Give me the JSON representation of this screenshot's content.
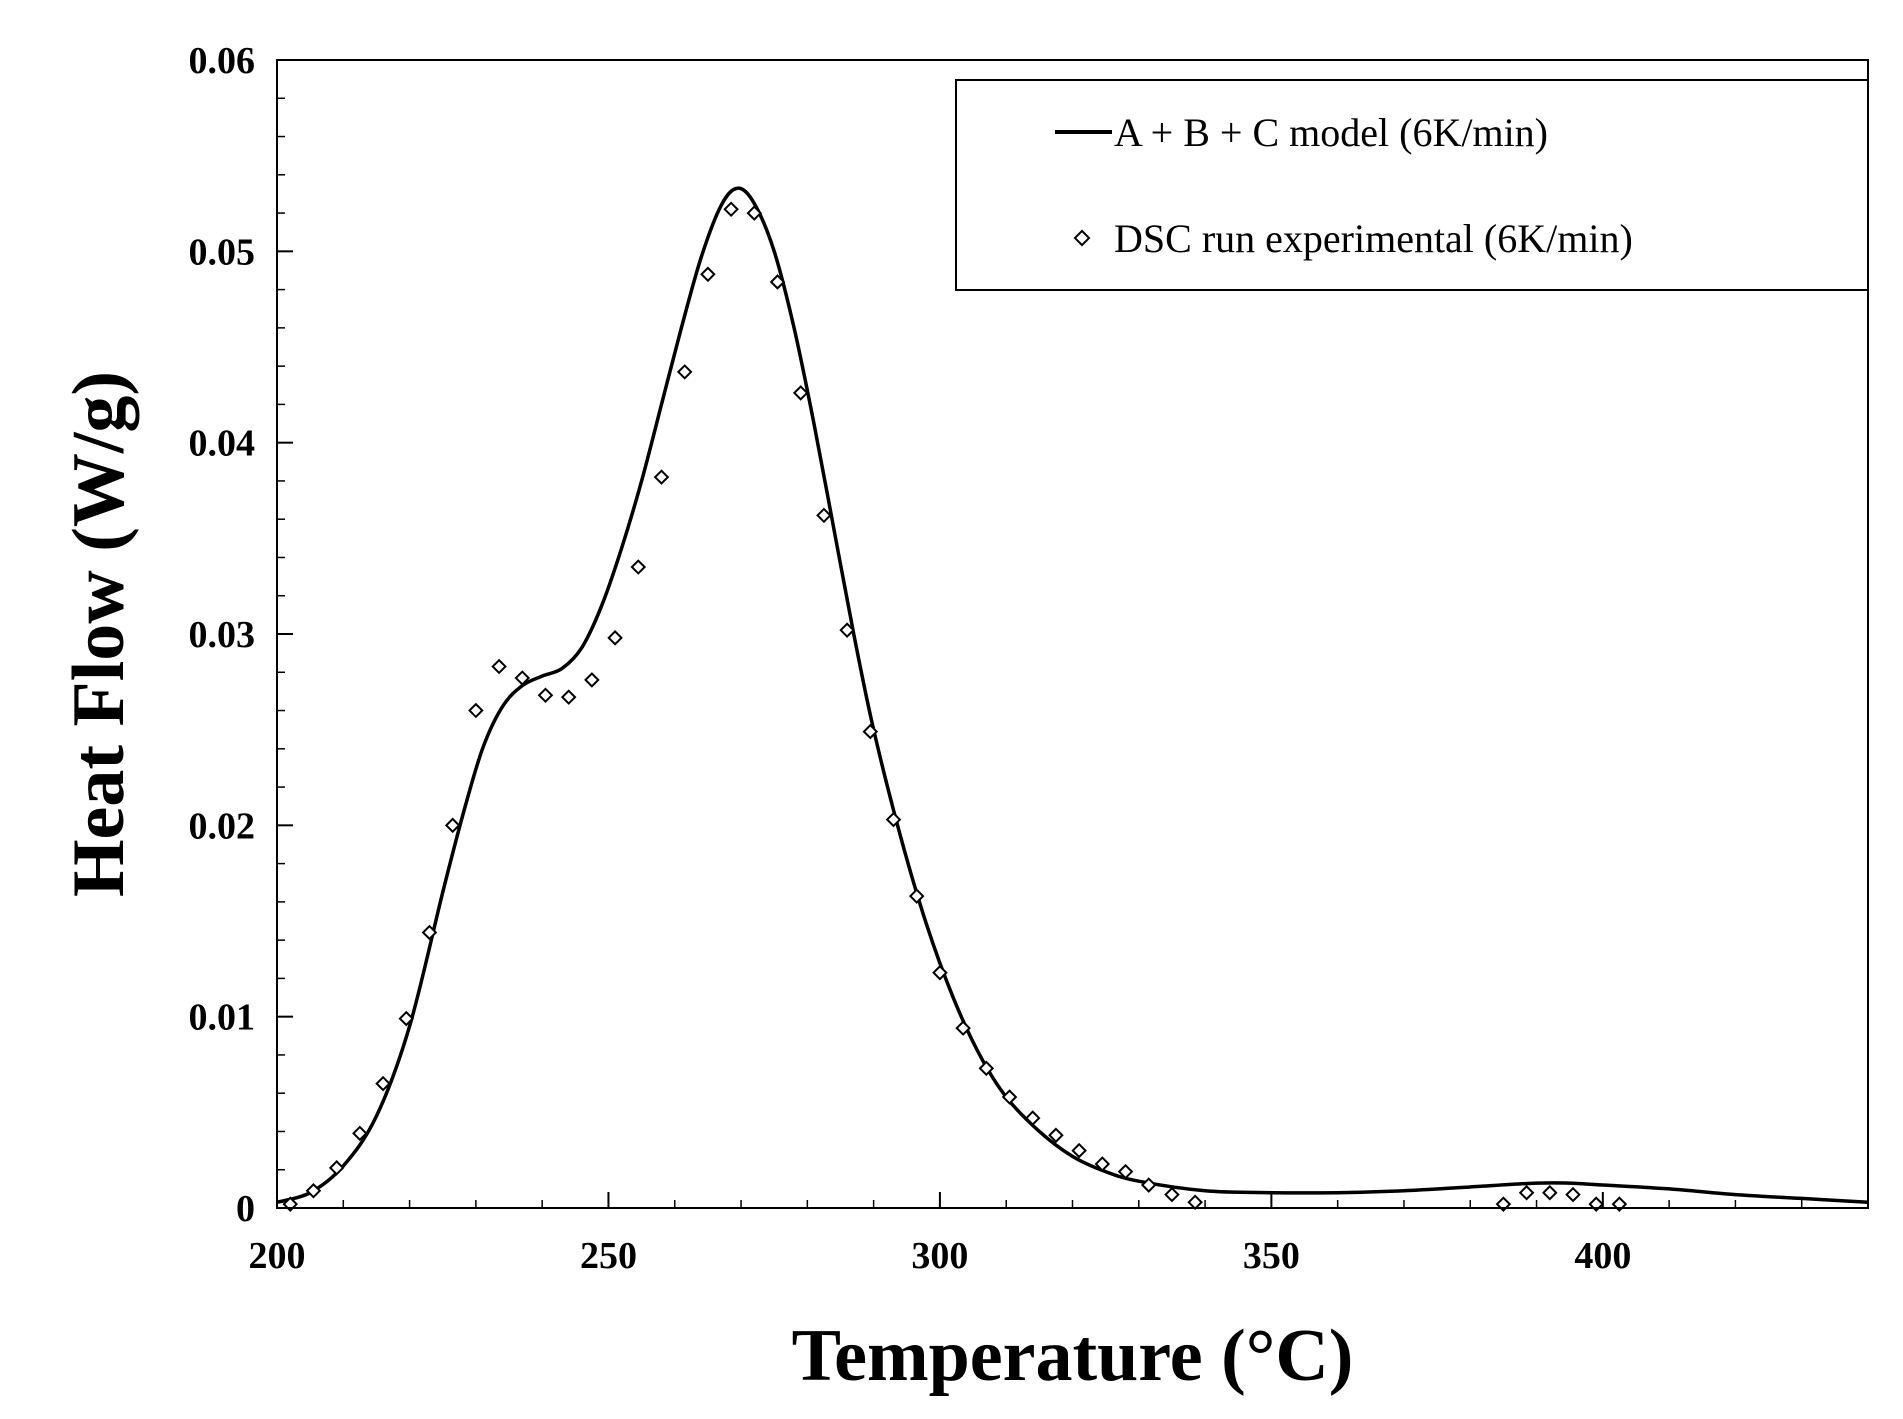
{
  "chart_data": {
    "type": "line",
    "title": "",
    "xlabel": "Temperature (°C)",
    "ylabel": "Heat Flow (W/g)",
    "xlim": [
      200,
      440
    ],
    "ylim": [
      0,
      0.06
    ],
    "xticks": [
      200,
      250,
      300,
      350,
      400
    ],
    "xtick_labels": [
      "200",
      "250",
      "300",
      "350",
      "400"
    ],
    "yticks": [
      0,
      0.01,
      0.02,
      0.03,
      0.04,
      0.05,
      0.06
    ],
    "ytick_labels": [
      "0",
      "0.01",
      "0.02",
      "0.03",
      "0.04",
      "0.05",
      "0.06"
    ],
    "grid": false,
    "legend_position": "top-right",
    "series": [
      {
        "name": "A + B + C model (6K/min)",
        "style": "solid-line",
        "color": "#000000",
        "x": [
          200,
          205,
          210,
          215,
          220,
          225,
          228,
          231,
          234,
          237,
          240,
          243,
          246,
          249,
          252,
          255,
          258,
          261,
          264,
          267,
          269.5,
          272,
          275,
          278,
          281,
          284,
          287,
          290,
          294,
          298,
          302,
          306,
          310,
          315,
          320,
          325,
          330,
          340,
          350,
          360,
          370,
          380,
          390,
          395,
          400,
          410,
          420,
          430,
          440
        ],
        "y": [
          0.0003,
          0.0008,
          0.0022,
          0.0048,
          0.0095,
          0.0165,
          0.0205,
          0.024,
          0.0262,
          0.0273,
          0.0278,
          0.0282,
          0.0293,
          0.0315,
          0.0345,
          0.038,
          0.042,
          0.046,
          0.0497,
          0.0524,
          0.0533,
          0.0525,
          0.05,
          0.046,
          0.041,
          0.0355,
          0.03,
          0.025,
          0.0195,
          0.0148,
          0.011,
          0.008,
          0.0058,
          0.004,
          0.0027,
          0.0019,
          0.0014,
          0.0009,
          0.0008,
          0.0008,
          0.0009,
          0.0011,
          0.0013,
          0.0013,
          0.0012,
          0.001,
          0.0007,
          0.0005,
          0.0003
        ]
      },
      {
        "name": "DSC run experimental (6K/min)",
        "style": "open-diamond",
        "color": "#000000",
        "x": [
          202,
          205.5,
          209,
          212.5,
          216,
          219.5,
          223,
          226.5,
          230,
          233.5,
          237,
          240.5,
          244,
          247.5,
          251,
          254.5,
          258,
          261.5,
          265,
          268.5,
          272,
          275.5,
          279,
          282.5,
          286,
          289.5,
          293,
          296.5,
          300,
          303.5,
          307,
          310.5,
          314,
          317.5,
          321,
          324.5,
          328,
          331.5,
          335,
          338.5,
          385,
          388.5,
          392,
          395.5,
          399,
          402.5
        ],
        "y": [
          0.0002,
          0.0009,
          0.0021,
          0.0039,
          0.0065,
          0.0099,
          0.0144,
          0.02,
          0.026,
          0.0283,
          0.0277,
          0.0268,
          0.0267,
          0.0276,
          0.0298,
          0.0335,
          0.0382,
          0.0437,
          0.0488,
          0.0522,
          0.052,
          0.0484,
          0.0426,
          0.0362,
          0.0302,
          0.0249,
          0.0203,
          0.0163,
          0.0123,
          0.0094,
          0.0073,
          0.0058,
          0.0047,
          0.0038,
          0.003,
          0.0023,
          0.0019,
          0.0012,
          0.0007,
          0.0003,
          0.0002,
          0.0008,
          0.0008,
          0.0007,
          0.0002,
          0.0002
        ]
      }
    ]
  }
}
